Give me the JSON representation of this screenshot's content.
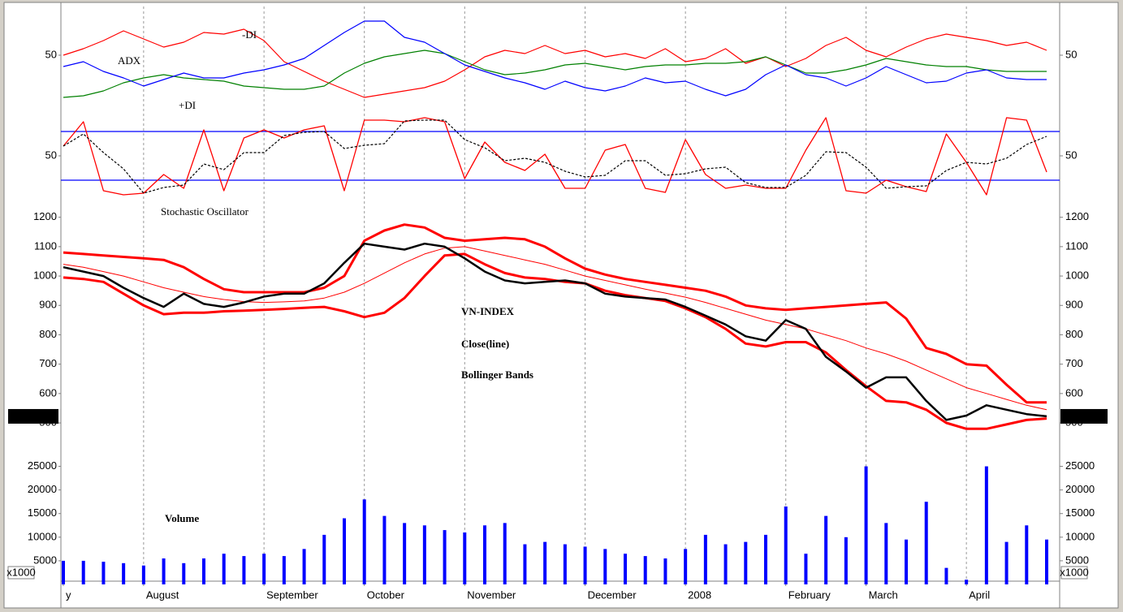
{
  "chart_data": [
    {
      "type": "line",
      "ylim": [
        15,
        80
      ],
      "yticks": [
        50
      ],
      "series": [
        {
          "name": "-DI",
          "color": "#ff0000",
          "values": [
            50,
            54,
            59,
            65,
            60,
            55,
            58,
            64,
            63,
            66,
            59,
            46,
            40,
            34,
            29,
            24,
            26,
            28,
            30,
            34,
            41,
            49,
            53,
            51,
            56,
            51,
            53,
            49,
            51,
            48,
            54,
            46,
            48,
            54,
            45,
            49,
            43,
            48,
            56,
            61,
            53,
            49,
            55,
            60,
            63,
            61,
            59,
            56,
            58,
            53
          ]
        },
        {
          "name": "ADX",
          "color": "#008000",
          "values": [
            24,
            25,
            28,
            33,
            36,
            38,
            36,
            35,
            34,
            31,
            30,
            29,
            29,
            31,
            39,
            45,
            49,
            51,
            53,
            51,
            46,
            41,
            38,
            39,
            41,
            44,
            45,
            43,
            41,
            43,
            44,
            44,
            45,
            45,
            46,
            49,
            44,
            39,
            39,
            41,
            44,
            48,
            46,
            44,
            43,
            43,
            41,
            40,
            40,
            40
          ]
        },
        {
          "name": "+DI",
          "color": "#0000ff",
          "values": [
            43,
            46,
            40,
            36,
            31,
            35,
            39,
            36,
            36,
            39,
            41,
            44,
            48,
            56,
            64,
            71,
            71,
            61,
            58,
            51,
            44,
            40,
            36,
            33,
            29,
            34,
            30,
            28,
            31,
            36,
            33,
            34,
            29,
            25,
            29,
            38,
            44,
            38,
            36,
            31,
            36,
            43,
            38,
            33,
            34,
            39,
            41,
            36,
            35,
            35
          ]
        }
      ]
    },
    {
      "type": "line",
      "title": "Stochastic Oscillator",
      "ylim": [
        0,
        100
      ],
      "yticks": [
        50
      ],
      "reference_lines": [
        80,
        20
      ],
      "reference_color": "#0000ff",
      "series": [
        {
          "color": "#ff0000",
          "values": [
            62,
            92,
            7,
            2,
            4,
            27,
            10,
            82,
            7,
            72,
            82,
            72,
            82,
            87,
            7,
            94,
            94,
            92,
            97,
            92,
            22,
            67,
            42,
            32,
            52,
            10,
            10,
            57,
            64,
            10,
            5,
            70,
            27,
            10,
            14,
            10,
            10,
            57,
            97,
            7,
            4,
            20,
            12,
            6,
            77,
            42,
            2,
            97,
            94,
            30
          ]
        },
        {
          "color": "#000000",
          "dashed": true,
          "values": [
            62,
            77,
            54,
            34,
            4,
            11,
            14,
            40,
            33,
            54,
            54,
            75,
            79,
            80,
            59,
            63,
            65,
            93,
            94,
            94,
            70,
            60,
            44,
            47,
            42,
            31,
            24,
            26,
            44,
            44,
            26,
            28,
            34,
            36,
            17,
            11,
            11,
            26,
            55,
            54,
            36,
            10,
            12,
            13,
            32,
            42,
            40,
            47,
            64,
            74
          ]
        }
      ]
    },
    {
      "type": "line",
      "ylim": [
        420,
        1235
      ],
      "yticks": [
        1200,
        1100,
        1000,
        900,
        800,
        700,
        600,
        500
      ],
      "annotations": [
        {
          "text": "VN-INDEX",
          "color": "#000000"
        },
        {
          "text": "Close(line)",
          "color": "#000000"
        },
        {
          "text": "Bollinger Bands",
          "color": "#ff0000"
        }
      ],
      "last_value": {
        "value": 522.36,
        "label": "522.360"
      },
      "series": [
        {
          "color": "#ff0000",
          "values": [
            1080,
            1075,
            1070,
            1065,
            1060,
            1055,
            1030,
            990,
            955,
            945,
            945,
            945,
            945,
            960,
            1000,
            1120,
            1155,
            1175,
            1165,
            1130,
            1120,
            1125,
            1130,
            1125,
            1100,
            1060,
            1025,
            1005,
            990,
            980,
            970,
            960,
            950,
            930,
            900,
            890,
            885,
            890,
            895,
            900,
            905,
            910,
            855,
            755,
            735,
            700,
            695,
            630,
            570,
            570
          ]
        },
        {
          "color": "#ff0000",
          "values": [
            1040,
            1030,
            1015,
            1000,
            980,
            960,
            945,
            930,
            920,
            913,
            910,
            912,
            915,
            925,
            945,
            975,
            1010,
            1045,
            1075,
            1095,
            1100,
            1085,
            1070,
            1055,
            1040,
            1020,
            1000,
            985,
            970,
            955,
            942,
            928,
            910,
            890,
            870,
            850,
            835,
            820,
            800,
            780,
            755,
            735,
            710,
            680,
            650,
            620,
            600,
            580,
            560,
            545
          ]
        },
        {
          "color": "#ff0000",
          "values": [
            995,
            990,
            980,
            940,
            900,
            870,
            875,
            875,
            880,
            882,
            885,
            888,
            892,
            895,
            880,
            860,
            875,
            925,
            1000,
            1070,
            1075,
            1040,
            1010,
            995,
            990,
            980,
            975,
            950,
            935,
            925,
            915,
            890,
            860,
            820,
            770,
            760,
            775,
            775,
            740,
            680,
            625,
            575,
            570,
            545,
            500,
            480,
            480,
            495,
            510,
            515
          ]
        },
        {
          "color": "#000000",
          "values": [
            1030,
            1015,
            1000,
            960,
            925,
            895,
            940,
            905,
            895,
            910,
            930,
            940,
            940,
            975,
            1045,
            1110,
            1100,
            1090,
            1110,
            1100,
            1060,
            1015,
            985,
            975,
            980,
            985,
            975,
            940,
            930,
            925,
            920,
            895,
            865,
            835,
            795,
            780,
            850,
            820,
            725,
            675,
            620,
            655,
            655,
            575,
            510,
            525,
            560,
            545,
            530,
            522.36
          ]
        }
      ]
    },
    {
      "type": "bar",
      "title": "Volume",
      "ylim": [
        0,
        27500
      ],
      "yticks": [
        25000,
        20000,
        15000,
        10000,
        5000
      ],
      "unit_label": "x1000",
      "color": "#0000ff",
      "values": [
        5000,
        5000,
        4800,
        4500,
        4000,
        5500,
        4500,
        5500,
        6500,
        6000,
        6500,
        6000,
        7500,
        10500,
        14000,
        18000,
        14500,
        13000,
        12500,
        11500,
        11000,
        12500,
        13000,
        8500,
        9000,
        8500,
        8000,
        7500,
        6500,
        6000,
        5500,
        7500,
        10500,
        8500,
        9000,
        10500,
        16500,
        6500,
        14500,
        10000,
        25000,
        13000,
        9500,
        17500,
        3500,
        1000,
        25000,
        9000,
        12500,
        9500
      ],
      "categories": [
        "y",
        null,
        null,
        null,
        "August",
        null,
        null,
        null,
        null,
        null,
        "September",
        null,
        null,
        null,
        null,
        "October",
        null,
        null,
        null,
        null,
        "November",
        null,
        null,
        null,
        null,
        null,
        "December",
        null,
        null,
        null,
        null,
        "2008",
        null,
        null,
        null,
        null,
        "February",
        null,
        null,
        null,
        "March",
        null,
        null,
        null,
        null,
        "April",
        null,
        null,
        null,
        null
      ]
    }
  ]
}
